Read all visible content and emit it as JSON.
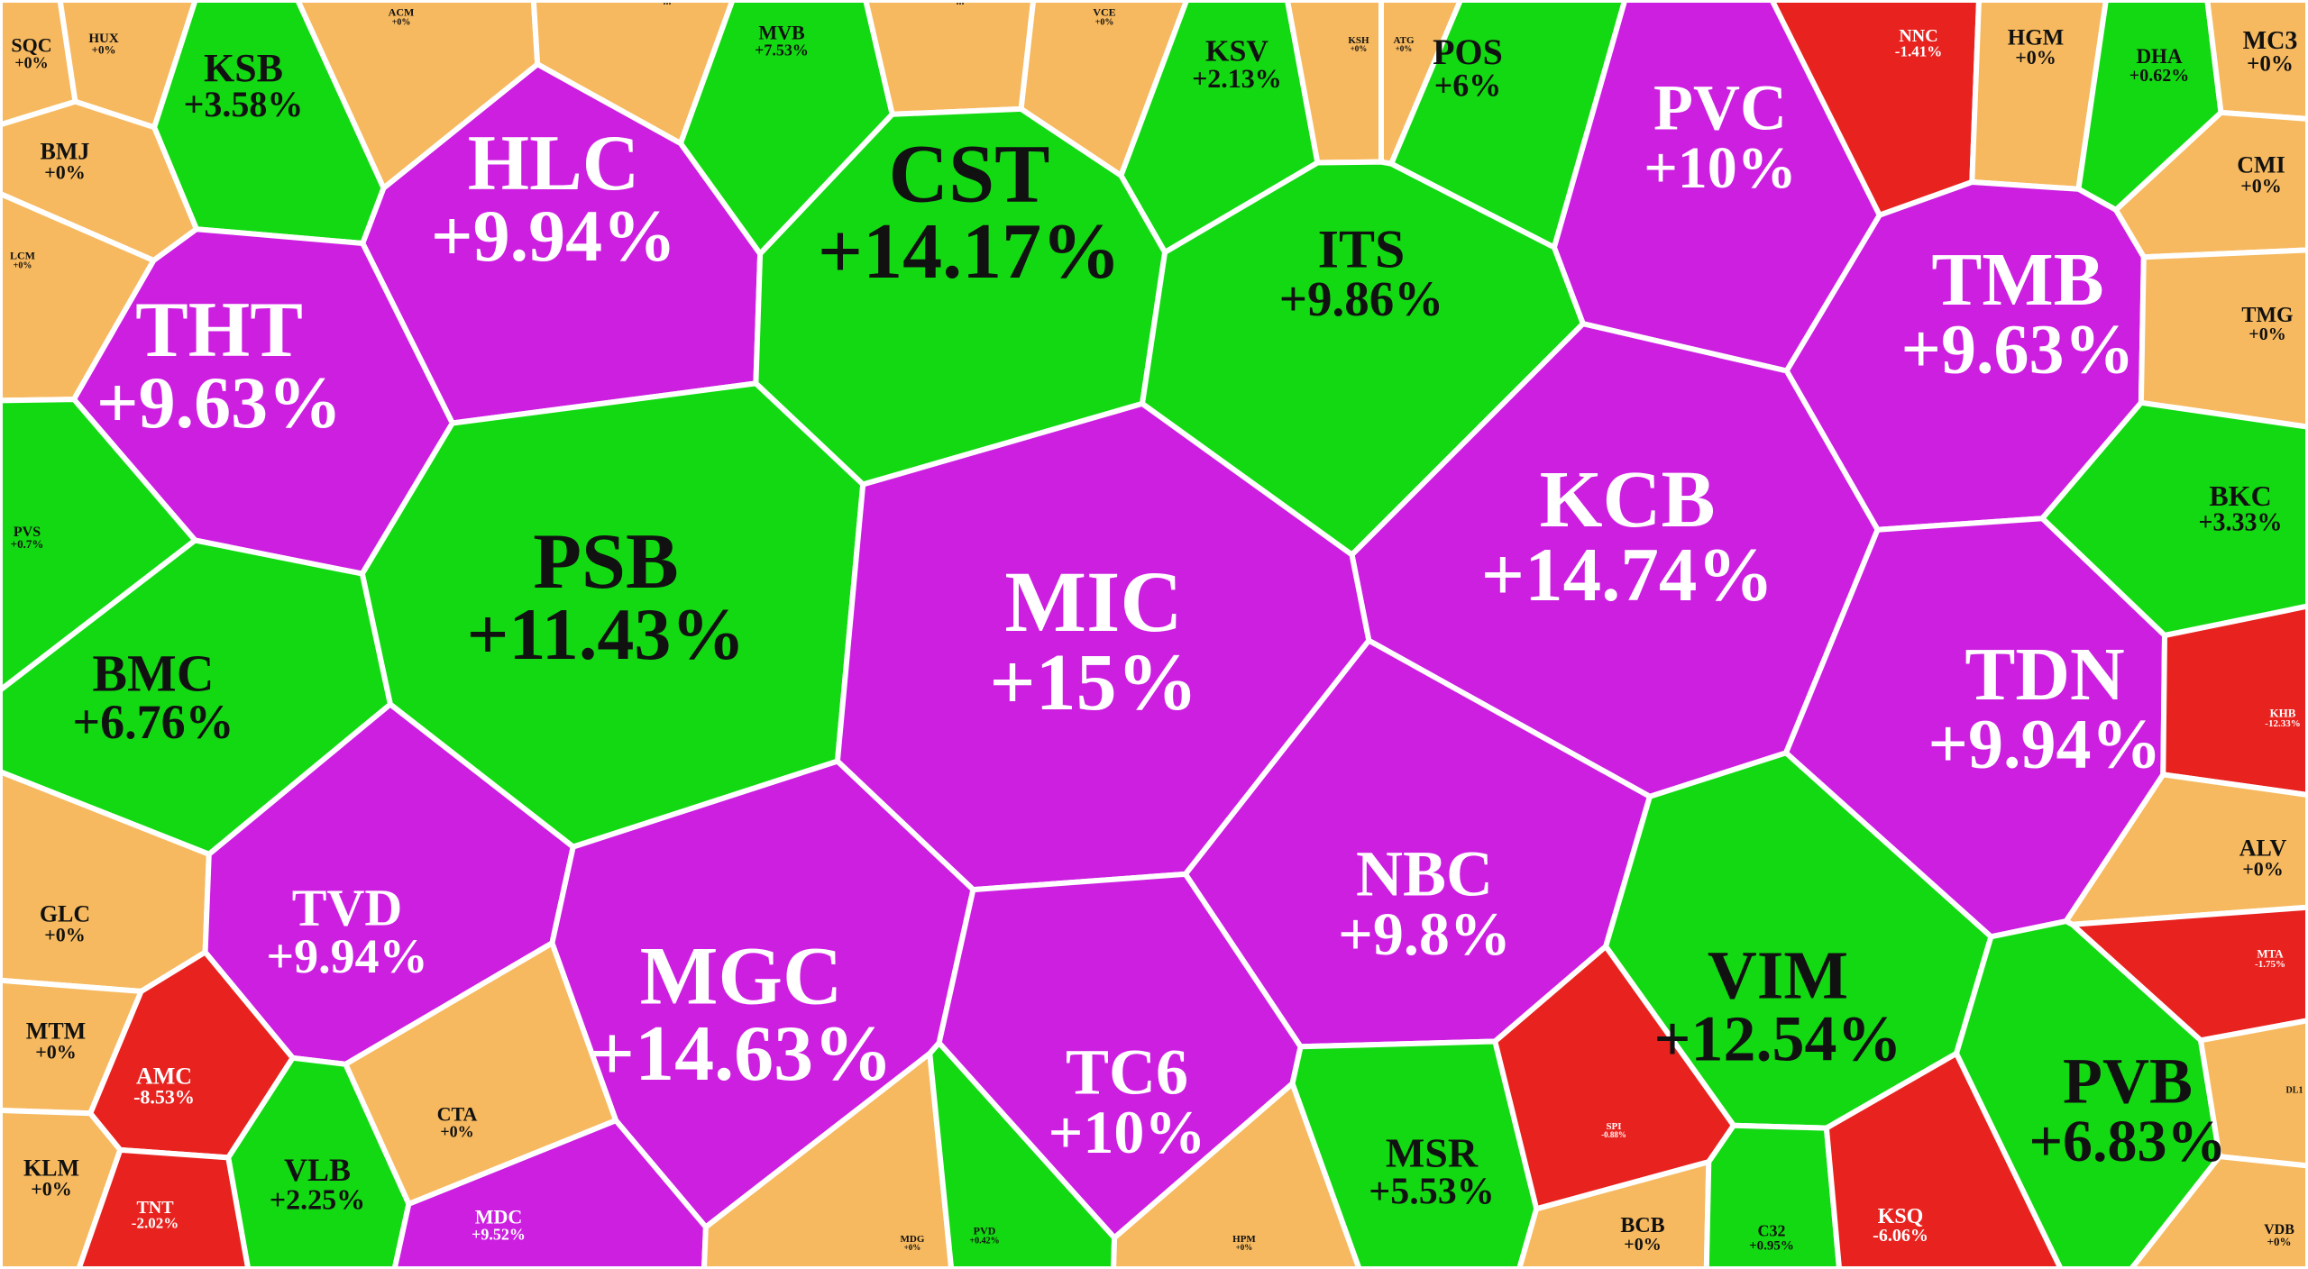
{
  "colors": {
    "ceiling": "#cc1fe0",
    "up": "#13d913",
    "flat": "#f6b95f",
    "down": "#e8231f",
    "text_dark": "#111111",
    "text_light": "#ffffff",
    "border": "#ffffff"
  },
  "chart_data": {
    "type": "heatmap",
    "description_kind": "voronoi-treemap",
    "cells": [
      {
        "ticker": "SQC",
        "change": "+0%",
        "status": "flat"
      },
      {
        "ticker": "HUX",
        "change": "+0%",
        "status": "flat"
      },
      {
        "ticker": "ACM",
        "change": "+0%",
        "status": "flat"
      },
      {
        "ticker": "...",
        "change": "",
        "status": "flat"
      },
      {
        "ticker": "MVB",
        "change": "+7.53%",
        "status": "up"
      },
      {
        "ticker": "...",
        "change": "",
        "status": "flat"
      },
      {
        "ticker": "VCE",
        "change": "+0%",
        "status": "flat"
      },
      {
        "ticker": "KSV",
        "change": "+2.13%",
        "status": "up"
      },
      {
        "ticker": "KSH",
        "change": "+0%",
        "status": "flat"
      },
      {
        "ticker": "ATG",
        "change": "+0%",
        "status": "flat"
      },
      {
        "ticker": "POS",
        "change": "+6%",
        "status": "up"
      },
      {
        "ticker": "PVC",
        "change": "+10%",
        "status": "ceiling"
      },
      {
        "ticker": "NNC",
        "change": "-1.41%",
        "status": "down"
      },
      {
        "ticker": "HGM",
        "change": "+0%",
        "status": "flat"
      },
      {
        "ticker": "DHA",
        "change": "+0.62%",
        "status": "up"
      },
      {
        "ticker": "MC3",
        "change": "+0%",
        "status": "flat"
      },
      {
        "ticker": "KSB",
        "change": "+3.58%",
        "status": "up"
      },
      {
        "ticker": "BMJ",
        "change": "+0%",
        "status": "flat"
      },
      {
        "ticker": "HLC",
        "change": "+9.94%",
        "status": "ceiling"
      },
      {
        "ticker": "CST",
        "change": "+14.17%",
        "status": "up"
      },
      {
        "ticker": "ITS",
        "change": "+9.86%",
        "status": "up"
      },
      {
        "ticker": "CMI",
        "change": "+0%",
        "status": "flat"
      },
      {
        "ticker": "LCM",
        "change": "+0%",
        "status": "flat"
      },
      {
        "ticker": "THT",
        "change": "+9.63%",
        "status": "ceiling"
      },
      {
        "ticker": "TMB",
        "change": "+9.63%",
        "status": "ceiling"
      },
      {
        "ticker": "TMG",
        "change": "+0%",
        "status": "flat"
      },
      {
        "ticker": "KCB",
        "change": "+14.74%",
        "status": "ceiling"
      },
      {
        "ticker": "PVS",
        "change": "+0.7%",
        "status": "up"
      },
      {
        "ticker": "BKC",
        "change": "+3.33%",
        "status": "up"
      },
      {
        "ticker": "PSB",
        "change": "+11.43%",
        "status": "up"
      },
      {
        "ticker": "MIC",
        "change": "+15%",
        "status": "ceiling"
      },
      {
        "ticker": "BMC",
        "change": "+6.76%",
        "status": "up"
      },
      {
        "ticker": "TDN",
        "change": "+9.94%",
        "status": "ceiling"
      },
      {
        "ticker": "KHB",
        "change": "-12.33%",
        "status": "down"
      },
      {
        "ticker": "NBC",
        "change": "+9.8%",
        "status": "ceiling"
      },
      {
        "ticker": "ALV",
        "change": "+0%",
        "status": "flat"
      },
      {
        "ticker": "GLC",
        "change": "+0%",
        "status": "flat"
      },
      {
        "ticker": "TVD",
        "change": "+9.94%",
        "status": "ceiling"
      },
      {
        "ticker": "MGC",
        "change": "+14.63%",
        "status": "ceiling"
      },
      {
        "ticker": "VIM",
        "change": "+12.54%",
        "status": "up"
      },
      {
        "ticker": "MTA",
        "change": "-1.75%",
        "status": "down"
      },
      {
        "ticker": "MTM",
        "change": "+0%",
        "status": "flat"
      },
      {
        "ticker": "AMC",
        "change": "-8.53%",
        "status": "down"
      },
      {
        "ticker": "TC6",
        "change": "+10%",
        "status": "ceiling"
      },
      {
        "ticker": "PVB",
        "change": "+6.83%",
        "status": "up"
      },
      {
        "ticker": "CTA",
        "change": "+0%",
        "status": "flat"
      },
      {
        "ticker": "SPI",
        "change": "-0.88%",
        "status": "down"
      },
      {
        "ticker": "MSR",
        "change": "+5.53%",
        "status": "up"
      },
      {
        "ticker": "DL1",
        "change": "",
        "status": "flat"
      },
      {
        "ticker": "KLM",
        "change": "+0%",
        "status": "flat"
      },
      {
        "ticker": "VLB",
        "change": "+2.25%",
        "status": "up"
      },
      {
        "ticker": "TNT",
        "change": "-2.02%",
        "status": "down"
      },
      {
        "ticker": "MDC",
        "change": "+9.52%",
        "status": "ceiling"
      },
      {
        "ticker": "MDG",
        "change": "+0%",
        "status": "flat"
      },
      {
        "ticker": "PVD",
        "change": "+0.42%",
        "status": "up"
      },
      {
        "ticker": "HPM",
        "change": "+0%",
        "status": "flat"
      },
      {
        "ticker": "BCB",
        "change": "+0%",
        "status": "flat"
      },
      {
        "ticker": "C32",
        "change": "+0.95%",
        "status": "up"
      },
      {
        "ticker": "KSQ",
        "change": "-6.06%",
        "status": "down"
      },
      {
        "ticker": "VDB",
        "change": "+0%",
        "status": "flat"
      }
    ]
  }
}
